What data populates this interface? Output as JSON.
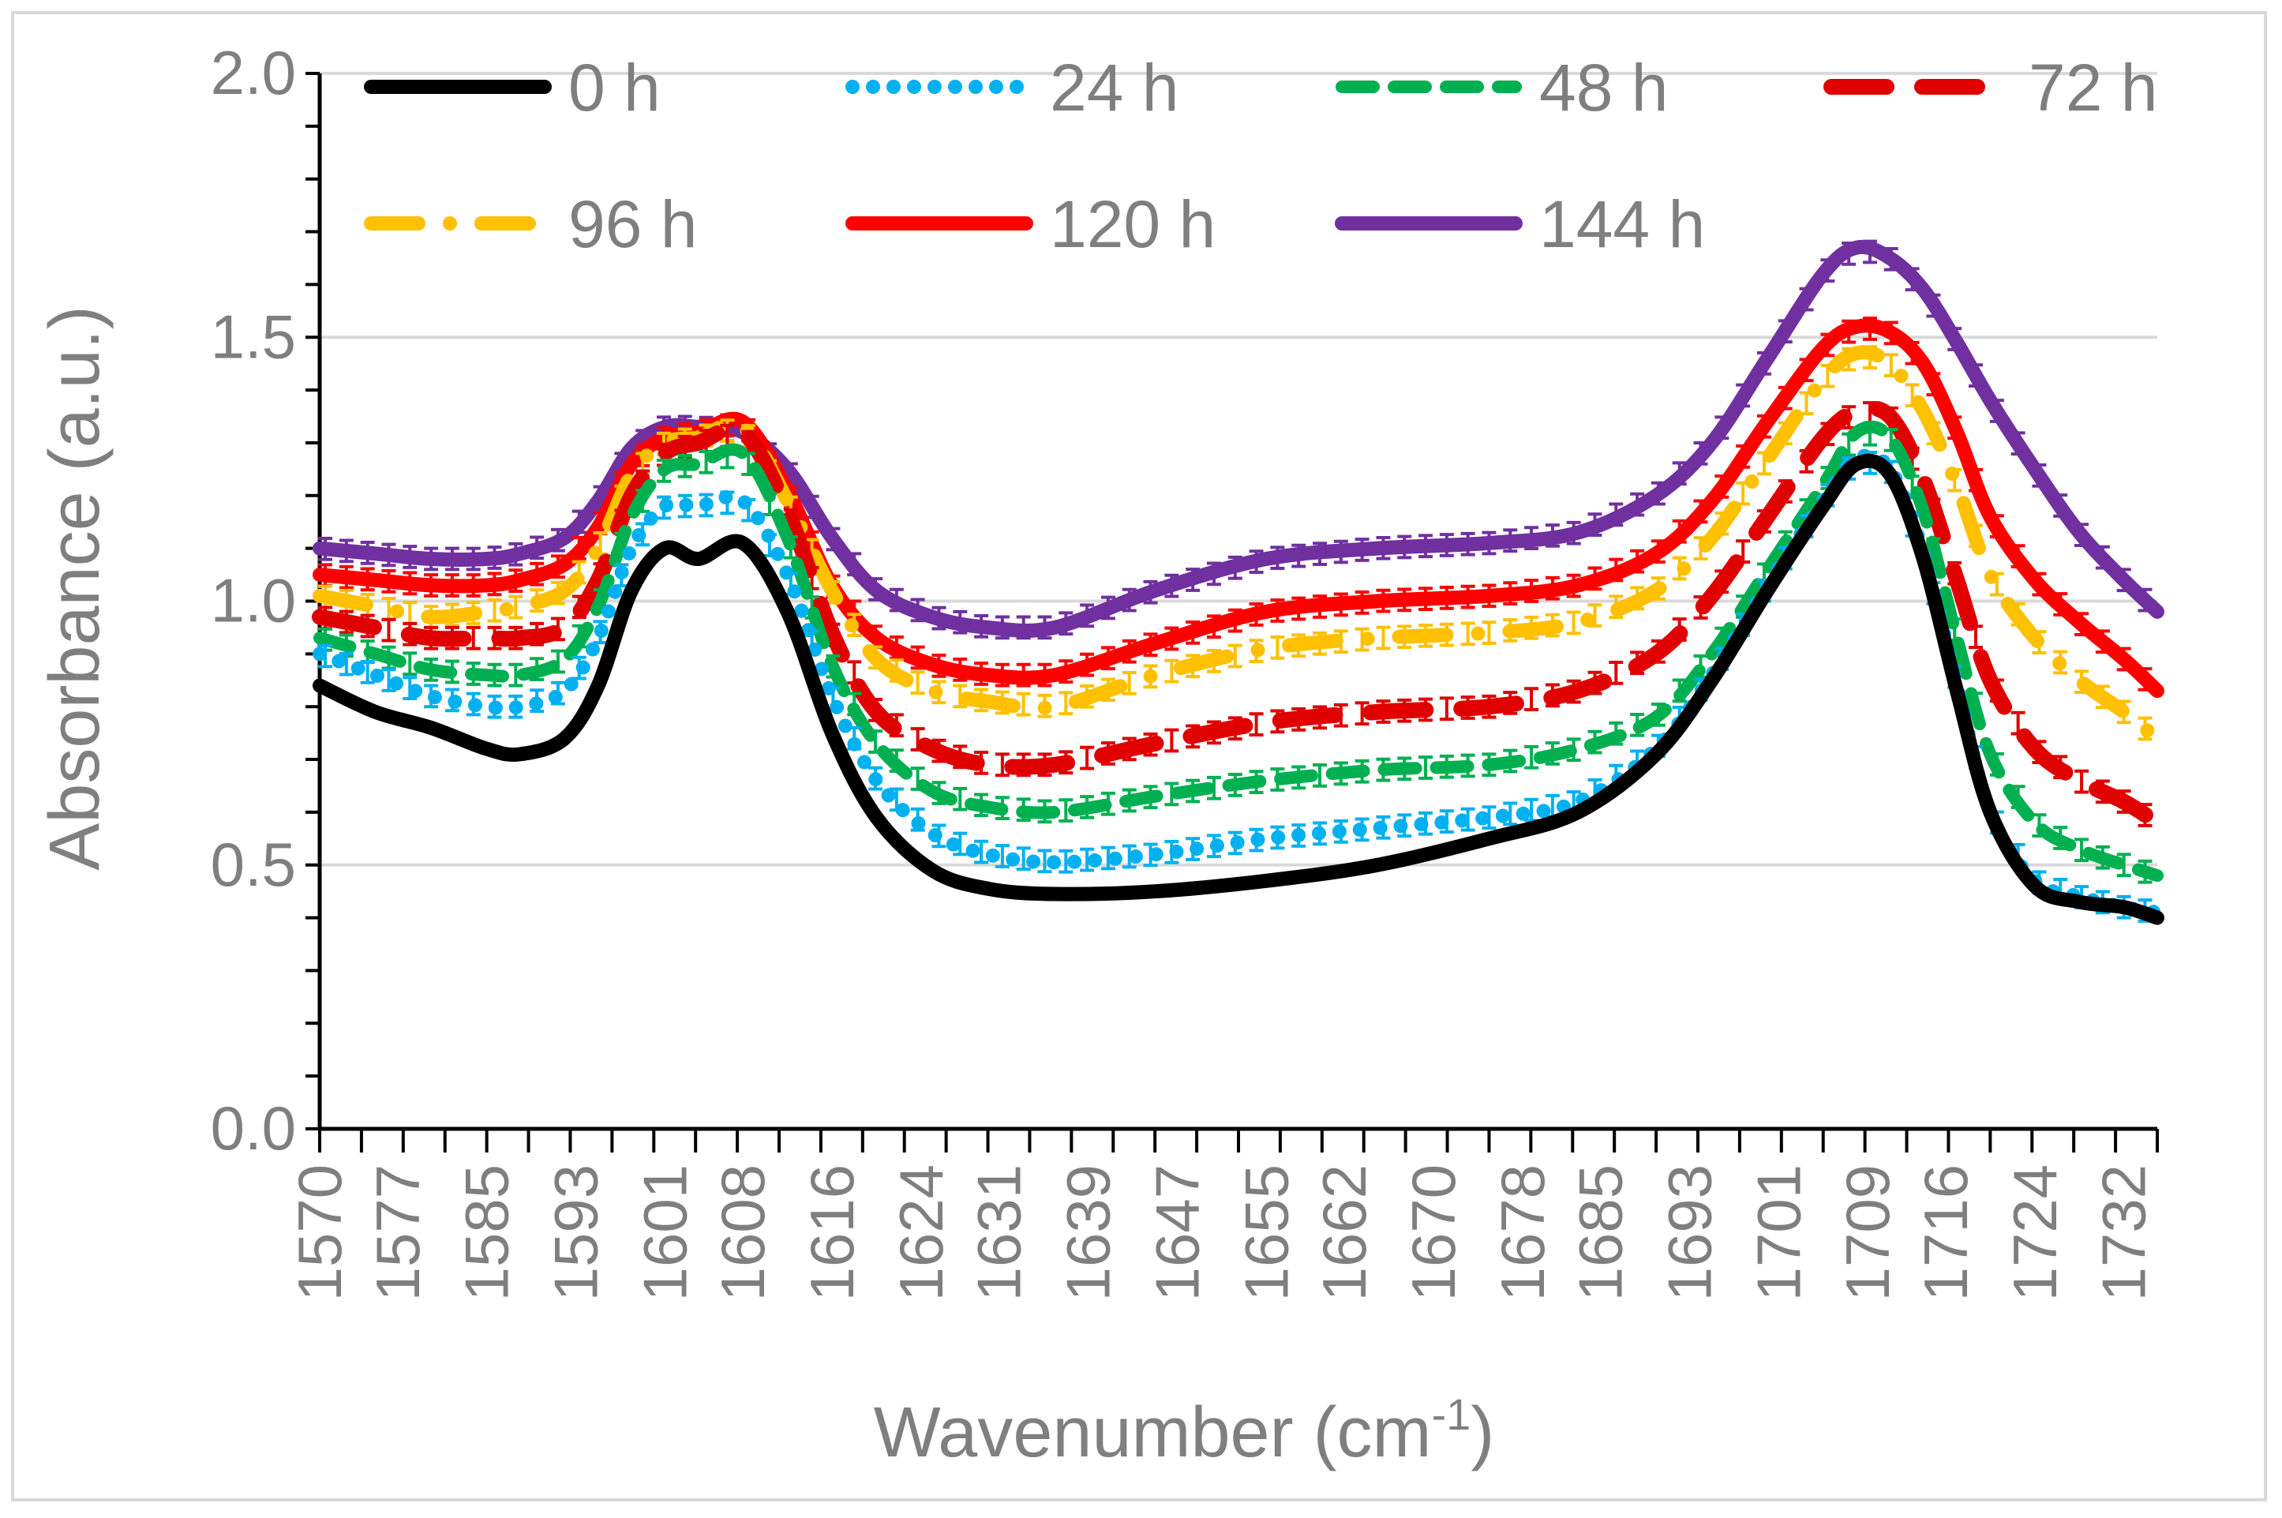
{
  "chart_data": {
    "type": "line",
    "xlabel": "Wavenumber (cm",
    "xlabel_sup": "-1",
    "xlabel_close": ")",
    "ylabel": "Absorbance (a.u.)",
    "ylim": [
      0,
      2.0
    ],
    "xlim": [
      1570,
      1735
    ],
    "yticks": [
      "0.0",
      "0.5",
      "1.0",
      "1.5",
      "2.0"
    ],
    "ytick_values": [
      0,
      0.5,
      1.0,
      1.5,
      2.0
    ],
    "xticks": [
      "1570",
      "1577",
      "1585",
      "1593",
      "1601",
      "1608",
      "1616",
      "1624",
      "1631",
      "1639",
      "1647",
      "1655",
      "1662",
      "1670",
      "1678",
      "1685",
      "1693",
      "1701",
      "1709",
      "1716",
      "1724",
      "1732"
    ],
    "xtick_values": [
      1570,
      1577,
      1585,
      1593,
      1601,
      1608,
      1616,
      1624,
      1631,
      1639,
      1647,
      1655,
      1662,
      1670,
      1678,
      1685,
      1693,
      1701,
      1709,
      1716,
      1724,
      1732
    ],
    "grid": true,
    "legend_position": "top",
    "series": [
      {
        "name": "0 h",
        "color": "#000000",
        "style": "solid",
        "x": [
          1570,
          1575,
          1580,
          1585,
          1588,
          1592,
          1595,
          1598,
          1601,
          1604,
          1608,
          1612,
          1616,
          1620,
          1625,
          1630,
          1636,
          1645,
          1655,
          1665,
          1675,
          1683,
          1690,
          1695,
          1700,
          1705,
          1708,
          1711,
          1714,
          1717,
          1720,
          1724,
          1728,
          1732,
          1735
        ],
        "values": [
          0.84,
          0.79,
          0.76,
          0.72,
          0.71,
          0.74,
          0.84,
          1.02,
          1.1,
          1.08,
          1.11,
          0.98,
          0.75,
          0.59,
          0.49,
          0.455,
          0.445,
          0.45,
          0.47,
          0.5,
          0.55,
          0.6,
          0.71,
          0.85,
          1.02,
          1.18,
          1.26,
          1.24,
          1.08,
          0.83,
          0.6,
          0.46,
          0.43,
          0.42,
          0.4
        ]
      },
      {
        "name": "24 h",
        "color": "#00b0f0",
        "style": "dotted",
        "x": [
          1570,
          1575,
          1580,
          1585,
          1588,
          1592,
          1595,
          1598,
          1601,
          1604,
          1608,
          1612,
          1616,
          1620,
          1625,
          1630,
          1636,
          1645,
          1655,
          1665,
          1675,
          1683,
          1690,
          1695,
          1700,
          1705,
          1708,
          1711,
          1714,
          1717,
          1720,
          1724,
          1728,
          1732,
          1735
        ],
        "values": [
          0.9,
          0.86,
          0.82,
          0.8,
          0.8,
          0.83,
          0.93,
          1.1,
          1.18,
          1.18,
          1.19,
          1.05,
          0.82,
          0.66,
          0.56,
          0.52,
          0.505,
          0.52,
          0.55,
          0.57,
          0.59,
          0.62,
          0.72,
          0.86,
          1.03,
          1.19,
          1.27,
          1.25,
          1.09,
          0.84,
          0.6,
          0.47,
          0.44,
          0.42,
          0.41
        ]
      },
      {
        "name": "48 h",
        "color": "#00b050",
        "style": "dashed",
        "x": [
          1570,
          1575,
          1580,
          1585,
          1588,
          1592,
          1595,
          1598,
          1601,
          1604,
          1608,
          1612,
          1616,
          1620,
          1625,
          1630,
          1636,
          1645,
          1655,
          1665,
          1675,
          1683,
          1690,
          1695,
          1700,
          1705,
          1708,
          1711,
          1714,
          1717,
          1720,
          1724,
          1728,
          1732,
          1735
        ],
        "values": [
          0.93,
          0.9,
          0.87,
          0.86,
          0.86,
          0.89,
          0.99,
          1.16,
          1.25,
          1.26,
          1.28,
          1.12,
          0.88,
          0.73,
          0.64,
          0.61,
          0.6,
          0.63,
          0.66,
          0.68,
          0.69,
          0.72,
          0.78,
          0.9,
          1.06,
          1.22,
          1.32,
          1.31,
          1.17,
          0.93,
          0.71,
          0.58,
          0.53,
          0.5,
          0.48
        ]
      },
      {
        "name": "72 h",
        "color": "#e00000",
        "style": "longdash",
        "x": [
          1570,
          1575,
          1580,
          1585,
          1588,
          1592,
          1595,
          1598,
          1601,
          1604,
          1608,
          1612,
          1616,
          1620,
          1625,
          1630,
          1636,
          1645,
          1655,
          1665,
          1675,
          1683,
          1690,
          1695,
          1700,
          1705,
          1708,
          1711,
          1714,
          1717,
          1720,
          1724,
          1728,
          1732,
          1735
        ],
        "values": [
          0.97,
          0.95,
          0.93,
          0.93,
          0.93,
          0.95,
          1.04,
          1.2,
          1.28,
          1.3,
          1.32,
          1.17,
          0.94,
          0.79,
          0.72,
          0.69,
          0.69,
          0.73,
          0.77,
          0.79,
          0.8,
          0.83,
          0.9,
          1.01,
          1.16,
          1.31,
          1.36,
          1.35,
          1.23,
          1.04,
          0.85,
          0.72,
          0.66,
          0.62,
          0.58
        ]
      },
      {
        "name": "96 h",
        "color": "#ffc000",
        "style": "dashdot",
        "x": [
          1570,
          1575,
          1580,
          1585,
          1588,
          1592,
          1595,
          1598,
          1601,
          1604,
          1608,
          1612,
          1616,
          1620,
          1625,
          1630,
          1636,
          1645,
          1655,
          1665,
          1675,
          1683,
          1690,
          1695,
          1700,
          1705,
          1708,
          1711,
          1714,
          1717,
          1720,
          1724,
          1728,
          1732,
          1735
        ],
        "values": [
          1.01,
          0.99,
          0.97,
          0.98,
          0.99,
          1.02,
          1.1,
          1.24,
          1.3,
          1.31,
          1.33,
          1.19,
          1.02,
          0.89,
          0.83,
          0.81,
          0.8,
          0.86,
          0.91,
          0.93,
          0.94,
          0.96,
          1.02,
          1.12,
          1.27,
          1.42,
          1.47,
          1.45,
          1.36,
          1.22,
          1.05,
          0.93,
          0.85,
          0.79,
          0.74
        ]
      },
      {
        "name": "120 h",
        "color": "#ff0000",
        "style": "solid",
        "x": [
          1570,
          1575,
          1580,
          1585,
          1588,
          1592,
          1595,
          1598,
          1601,
          1604,
          1608,
          1612,
          1616,
          1620,
          1625,
          1630,
          1636,
          1645,
          1655,
          1665,
          1675,
          1683,
          1690,
          1695,
          1700,
          1705,
          1708,
          1711,
          1714,
          1717,
          1720,
          1724,
          1728,
          1732,
          1735
        ],
        "values": [
          1.05,
          1.04,
          1.03,
          1.03,
          1.04,
          1.07,
          1.14,
          1.26,
          1.31,
          1.32,
          1.34,
          1.21,
          1.03,
          0.93,
          0.88,
          0.86,
          0.86,
          0.92,
          0.98,
          1.0,
          1.01,
          1.03,
          1.09,
          1.19,
          1.34,
          1.48,
          1.52,
          1.51,
          1.45,
          1.32,
          1.16,
          1.04,
          0.96,
          0.89,
          0.83
        ]
      },
      {
        "name": "144 h",
        "color": "#7030a0",
        "style": "solid",
        "x": [
          1570,
          1575,
          1580,
          1585,
          1588,
          1592,
          1595,
          1598,
          1601,
          1604,
          1608,
          1612,
          1616,
          1620,
          1625,
          1630,
          1636,
          1645,
          1655,
          1665,
          1675,
          1683,
          1690,
          1695,
          1700,
          1705,
          1708,
          1711,
          1714,
          1717,
          1720,
          1724,
          1728,
          1732,
          1735
        ],
        "values": [
          1.1,
          1.09,
          1.08,
          1.08,
          1.09,
          1.12,
          1.19,
          1.29,
          1.33,
          1.33,
          1.32,
          1.25,
          1.12,
          1.02,
          0.97,
          0.95,
          0.95,
          1.02,
          1.08,
          1.1,
          1.11,
          1.13,
          1.2,
          1.3,
          1.46,
          1.62,
          1.67,
          1.65,
          1.59,
          1.49,
          1.38,
          1.25,
          1.13,
          1.04,
          0.98
        ]
      }
    ]
  }
}
